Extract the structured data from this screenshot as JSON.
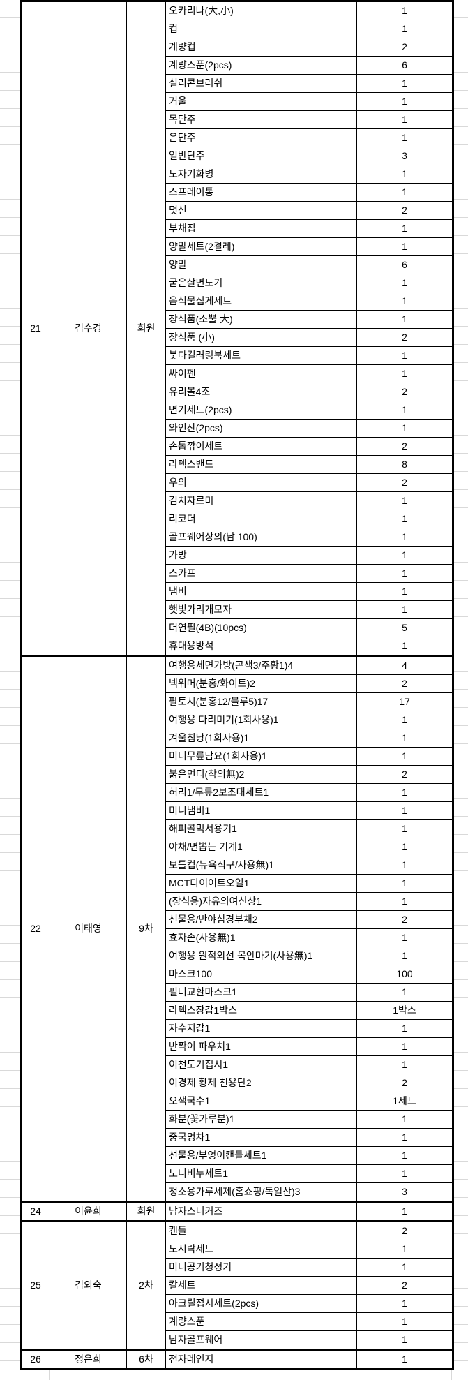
{
  "sheet": {
    "groups": [
      {
        "no": "21",
        "name": "김수경",
        "type": "회원",
        "items": [
          [
            "오카리나(大,小)",
            "1"
          ],
          [
            "컵",
            "1"
          ],
          [
            "계량컵",
            "2"
          ],
          [
            "계량스푼(2pcs)",
            "6"
          ],
          [
            "실리콘브러쉬",
            "1"
          ],
          [
            "거울",
            "1"
          ],
          [
            "목단주",
            "1"
          ],
          [
            "은단주",
            "1"
          ],
          [
            "일반단주",
            "3"
          ],
          [
            "도자기화병",
            "1"
          ],
          [
            "스프레이통",
            "1"
          ],
          [
            "덧신",
            "2"
          ],
          [
            "부채집",
            "1"
          ],
          [
            "양말세트(2켤레)",
            "1"
          ],
          [
            "양말",
            "6"
          ],
          [
            "굳은살면도기",
            "1"
          ],
          [
            "음식물집게세트",
            "1"
          ],
          [
            "장식품(소뿔 大)",
            "1"
          ],
          [
            "장식품 (小)",
            "2"
          ],
          [
            "붓다컬러링북세트",
            "1"
          ],
          [
            "싸이펜",
            "1"
          ],
          [
            "유리볼4조",
            "2"
          ],
          [
            "면기세트(2pcs)",
            "1"
          ],
          [
            "와인잔(2pcs)",
            "1"
          ],
          [
            "손톱깎이세트",
            "2"
          ],
          [
            "라텍스밴드",
            "8"
          ],
          [
            "우의",
            "2"
          ],
          [
            "김치자르미",
            "1"
          ],
          [
            "리코더",
            "1"
          ],
          [
            "골프웨어상의(남 100)",
            "1"
          ],
          [
            "가방",
            "1"
          ],
          [
            "스카프",
            "1"
          ],
          [
            "냄비",
            "1"
          ],
          [
            "햇빛가리개모자",
            "1"
          ],
          [
            "더연필(4B)(10pcs)",
            "5"
          ],
          [
            "휴대용방석",
            "1"
          ]
        ]
      },
      {
        "no": "22",
        "name": "이태영",
        "type": "9차",
        "items": [
          [
            "여행용세면가방(곤색3/주황1)4",
            "4"
          ],
          [
            "넥워머(분홍/화이트)2",
            "2"
          ],
          [
            "팔토시(분홍12/블루5)17",
            "17"
          ],
          [
            "여행용 다리미기(1회사용)1",
            "1"
          ],
          [
            "겨울침낭(1회사용)1",
            "1"
          ],
          [
            "미니무릎담요(1회사용)1",
            "1"
          ],
          [
            "붉은면티(착의無)2",
            "2"
          ],
          [
            "허리1/무릎2보조대세트1",
            "1"
          ],
          [
            "미니냄비1",
            "1"
          ],
          [
            "해피콜믹서용기1",
            "1"
          ],
          [
            "야채/면뽑는 기계1",
            "1"
          ],
          [
            "보틀컵(뉴욕직구/사용無)1",
            "1"
          ],
          [
            "MCT다이어트오일1",
            "1"
          ],
          [
            "(장식용)자유의여신상1",
            "1"
          ],
          [
            "선물용/반야심경부채2",
            "2"
          ],
          [
            "효자손(사용無)1",
            "1"
          ],
          [
            "여행용 원적외선 목안마기(사용無)1",
            "1"
          ],
          [
            "마스크100",
            "100"
          ],
          [
            "필터교환마스크1",
            "1"
          ],
          [
            "라텍스장갑1박스",
            "1박스"
          ],
          [
            "자수지갑1",
            "1"
          ],
          [
            "반짝이 파우치1",
            "1"
          ],
          [
            "이천도기접시1",
            "1"
          ],
          [
            "이경제 황제 천용단2",
            "2"
          ],
          [
            "오색국수1",
            "1세트"
          ],
          [
            "화분(꽃가루분)1",
            "1"
          ],
          [
            "중국명차1",
            "1"
          ],
          [
            "선물용/부엉이캔들세트1",
            "1"
          ],
          [
            "노니비누세트1",
            "1"
          ],
          [
            "청소용가루세제(홈쇼핑/독일산)3",
            "3"
          ]
        ]
      },
      {
        "no": "24",
        "name": "이윤희",
        "type": "회원",
        "items": [
          [
            "남자스니커즈",
            "1"
          ]
        ]
      },
      {
        "no": "25",
        "name": "김외숙",
        "type": "2차",
        "items": [
          [
            "캔들",
            "2"
          ],
          [
            "도시락세트",
            "1"
          ],
          [
            "미니공기청정기",
            "1"
          ],
          [
            "칼세트",
            "2"
          ],
          [
            "아크릴접시세트(2pcs)",
            "1"
          ],
          [
            "계량스푼",
            "1"
          ],
          [
            "남자골프웨어",
            "1"
          ]
        ]
      },
      {
        "no": "26",
        "name": "정은희",
        "type": "6차",
        "items": [
          [
            "전자레인지",
            "1"
          ]
        ]
      }
    ]
  }
}
